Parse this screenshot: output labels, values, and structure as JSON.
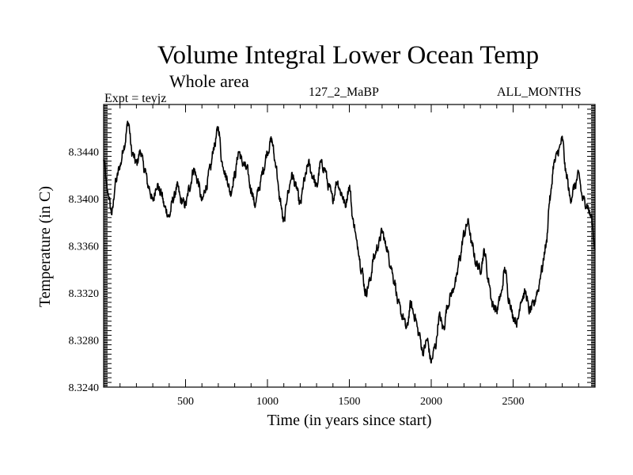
{
  "header": {
    "title": "Volume Integral Lower Ocean Temp",
    "subtitle": "Whole area",
    "expt": "Expt = teyjz",
    "center_label": "127_2_MaBP",
    "right_label": "ALL_MONTHS"
  },
  "chart_data": {
    "type": "line",
    "title": "Volume Integral Lower Ocean Temp",
    "xlabel": "Time (in years since start)",
    "ylabel": "Temperature (in C)",
    "xlim": [
      0,
      3000
    ],
    "ylim": [
      8.324,
      8.348
    ],
    "xticks": [
      500,
      1000,
      1500,
      2000,
      2500
    ],
    "yticks": [
      8.324,
      8.328,
      8.332,
      8.336,
      8.34,
      8.344
    ],
    "ytick_labels": [
      "8.3240",
      "8.3280",
      "8.3320",
      "8.3360",
      "8.3400",
      "8.3440"
    ],
    "grid": false,
    "series": [
      {
        "name": "teyjz",
        "color": "#000000",
        "x": [
          0,
          25,
          50,
          75,
          100,
          125,
          150,
          175,
          200,
          225,
          250,
          275,
          300,
          325,
          350,
          375,
          400,
          425,
          450,
          475,
          500,
          525,
          550,
          575,
          600,
          625,
          650,
          675,
          700,
          725,
          750,
          775,
          800,
          825,
          850,
          875,
          900,
          925,
          950,
          975,
          1000,
          1025,
          1050,
          1075,
          1100,
          1125,
          1150,
          1175,
          1200,
          1225,
          1250,
          1275,
          1300,
          1325,
          1350,
          1375,
          1400,
          1425,
          1450,
          1475,
          1500,
          1525,
          1550,
          1575,
          1600,
          1625,
          1650,
          1675,
          1700,
          1725,
          1750,
          1775,
          1800,
          1825,
          1850,
          1875,
          1900,
          1925,
          1950,
          1975,
          2000,
          2025,
          2050,
          2075,
          2100,
          2125,
          2150,
          2175,
          2200,
          2225,
          2250,
          2275,
          2300,
          2325,
          2350,
          2375,
          2400,
          2425,
          2450,
          2475,
          2500,
          2525,
          2550,
          2575,
          2600,
          2625,
          2650,
          2675,
          2700,
          2725,
          2750,
          2775,
          2800,
          2825,
          2850,
          2875,
          2900,
          2925,
          2950,
          2975,
          3000
        ],
        "values": [
          8.3432,
          8.3405,
          8.3388,
          8.3415,
          8.3428,
          8.3445,
          8.3465,
          8.3438,
          8.343,
          8.344,
          8.3425,
          8.341,
          8.3398,
          8.3412,
          8.3405,
          8.3392,
          8.3385,
          8.34,
          8.341,
          8.3398,
          8.3395,
          8.341,
          8.3425,
          8.3415,
          8.3398,
          8.341,
          8.3425,
          8.3445,
          8.346,
          8.343,
          8.3418,
          8.3405,
          8.342,
          8.344,
          8.343,
          8.3425,
          8.3408,
          8.3395,
          8.341,
          8.3425,
          8.344,
          8.345,
          8.343,
          8.34,
          8.338,
          8.3405,
          8.342,
          8.341,
          8.3395,
          8.3415,
          8.343,
          8.342,
          8.341,
          8.343,
          8.3425,
          8.341,
          8.34,
          8.3415,
          8.3405,
          8.3395,
          8.341,
          8.338,
          8.336,
          8.334,
          8.332,
          8.333,
          8.335,
          8.336,
          8.3372,
          8.336,
          8.3345,
          8.333,
          8.331,
          8.33,
          8.329,
          8.331,
          8.33,
          8.3285,
          8.327,
          8.328,
          8.3262,
          8.3275,
          8.33,
          8.329,
          8.331,
          8.332,
          8.333,
          8.335,
          8.337,
          8.338,
          8.336,
          8.3345,
          8.334,
          8.3355,
          8.333,
          8.331,
          8.3305,
          8.3318,
          8.334,
          8.3315,
          8.33,
          8.3295,
          8.3315,
          8.332,
          8.3305,
          8.331,
          8.3322,
          8.334,
          8.336,
          8.34,
          8.343,
          8.344,
          8.345,
          8.342,
          8.34,
          8.341,
          8.342,
          8.34,
          8.3395,
          8.3385,
          8.336
        ]
      }
    ]
  }
}
